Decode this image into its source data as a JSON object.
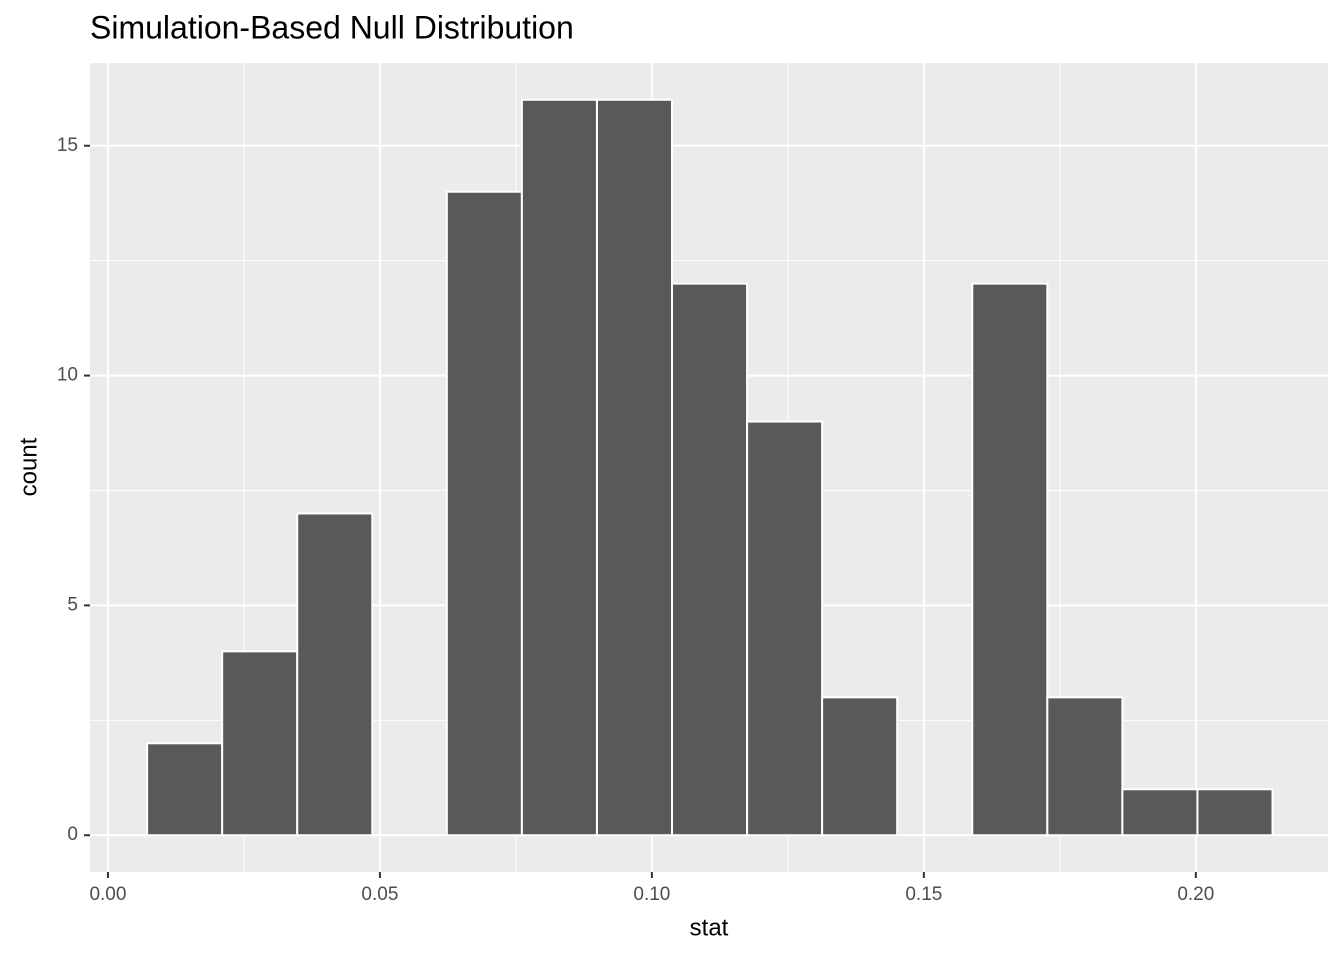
{
  "chart_data": {
    "type": "histogram",
    "title": "Simulation-Based Null Distribution",
    "x_label": "stat",
    "y_label": "count",
    "bins": [
      0.0072,
      0.021,
      0.0348,
      0.0486,
      0.0623,
      0.0761,
      0.0899,
      0.1037,
      0.1175,
      0.1313,
      0.1451,
      0.1589,
      0.1727,
      0.1865,
      0.2003,
      0.2141
    ],
    "counts": [
      2,
      4,
      7,
      0,
      14,
      16,
      16,
      12,
      9,
      3,
      0,
      12,
      3,
      1,
      1
    ],
    "color": "#595959",
    "edge_color": "#ffffff",
    "xlim": [
      -0.0033,
      0.2243
    ],
    "ylim": [
      -0.8,
      16.8
    ],
    "xticks": [
      {
        "value": 0,
        "label": "0.00"
      },
      {
        "value": 0.05,
        "label": "0.05"
      },
      {
        "value": 0.1,
        "label": "0.10"
      },
      {
        "value": 0.15,
        "label": "0.15"
      },
      {
        "value": 0.2,
        "label": "0.20"
      }
    ],
    "yticks": [
      0,
      5,
      10,
      15
    ],
    "grid": true
  }
}
